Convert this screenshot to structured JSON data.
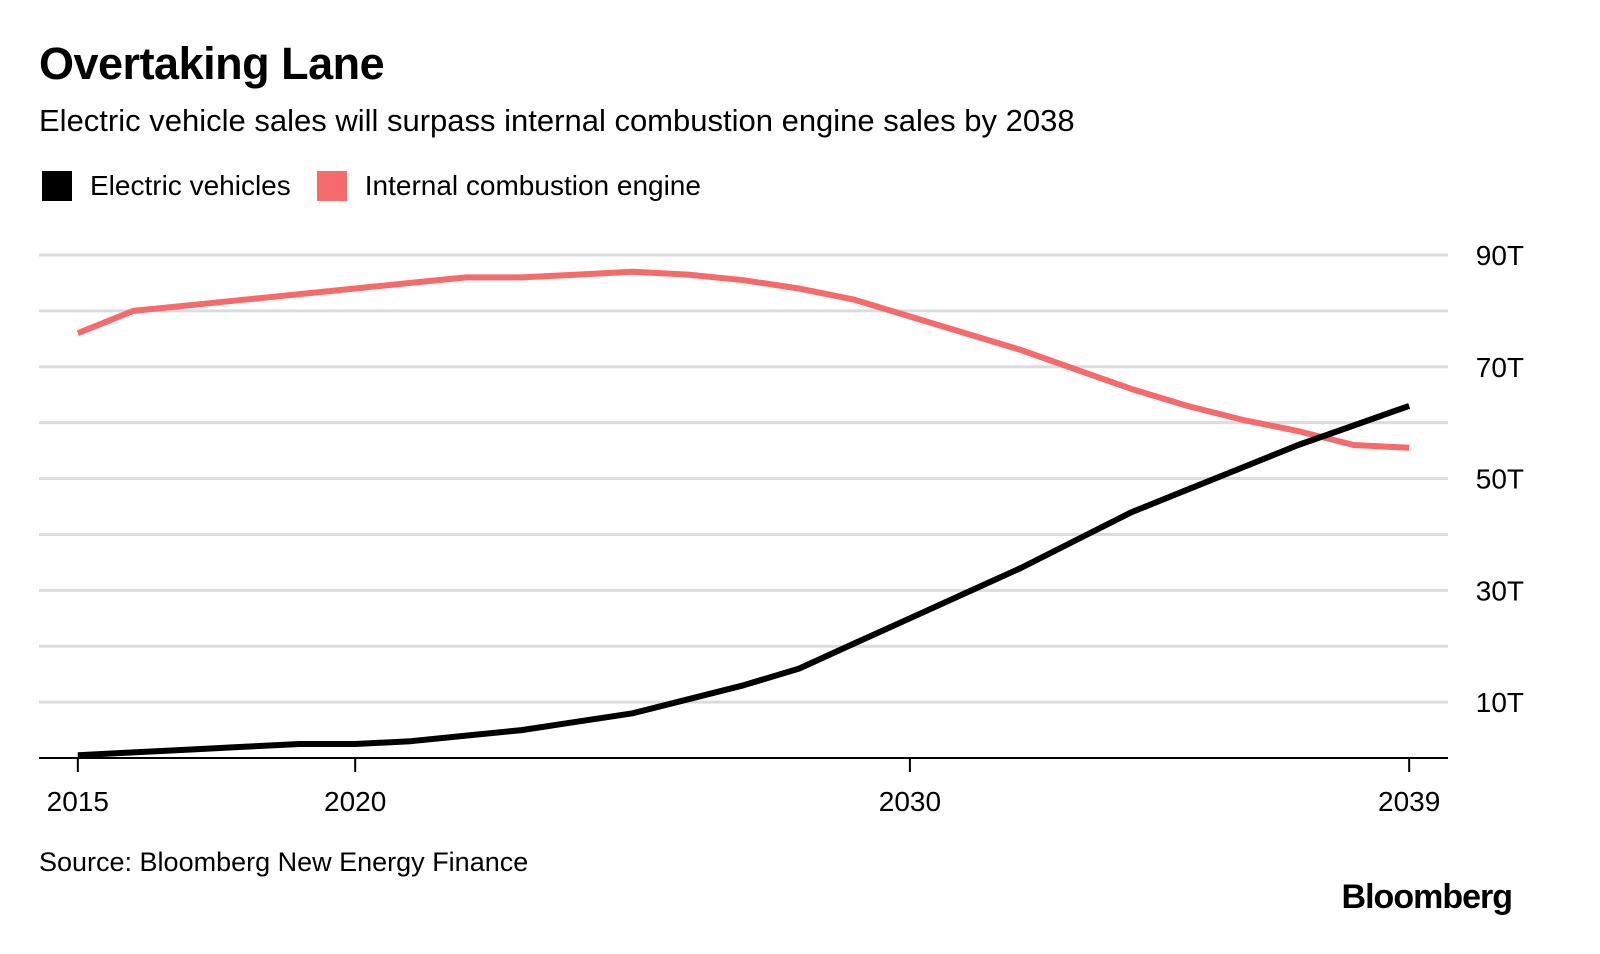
{
  "title": "Overtaking Lane",
  "subtitle": "Electric vehicle sales will surpass internal combustion engine sales by 2038",
  "source": "Source: Bloomberg New Energy Finance",
  "brand": "Bloomberg",
  "chart_data": {
    "type": "line",
    "title": "Overtaking Lane",
    "subtitle": "Electric vehicle sales will surpass internal combustion engine sales by 2038",
    "x": [
      2015,
      2016,
      2017,
      2018,
      2019,
      2020,
      2021,
      2022,
      2023,
      2024,
      2025,
      2026,
      2027,
      2028,
      2029,
      2030,
      2031,
      2032,
      2033,
      2034,
      2035,
      2036,
      2037,
      2038,
      2039
    ],
    "xticks": [
      2015,
      2020,
      2030,
      2039
    ],
    "xlim": [
      2014.3,
      2039.7
    ],
    "ylim": [
      0,
      90
    ],
    "yticks": [
      10,
      30,
      50,
      70,
      90
    ],
    "ytick_labels": [
      "10T",
      "30T",
      "50T",
      "70T",
      "90T"
    ],
    "grid_y": [
      10,
      20,
      30,
      40,
      50,
      60,
      70,
      80,
      90
    ],
    "y_axis_position": "right",
    "legend_position": "top-left",
    "series": [
      {
        "name": "Electric vehicles",
        "color": "#000000",
        "values": [
          0.5,
          1,
          1.5,
          2,
          2.5,
          2.5,
          3,
          4,
          5,
          6.5,
          8,
          10.5,
          13,
          16,
          20.5,
          25,
          29.5,
          34,
          39,
          44,
          48,
          52,
          56,
          59.5,
          63
        ]
      },
      {
        "name": "Internal combustion engine",
        "color": "#f56b6b",
        "values": [
          76,
          80,
          81,
          82,
          83,
          84,
          85,
          86,
          86,
          86.5,
          87,
          86.5,
          85.5,
          84,
          82,
          79,
          76,
          73,
          69.5,
          66,
          63,
          60.5,
          58.5,
          56,
          55.5
        ]
      }
    ]
  }
}
